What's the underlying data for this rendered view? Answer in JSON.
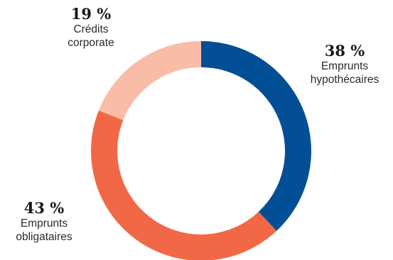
{
  "chart_data": {
    "type": "pie",
    "donut": true,
    "title": "",
    "slices": [
      {
        "label": "Emprunts hypothécaires",
        "label_lines": [
          "Emprunts",
          "hypothécaires"
        ],
        "value": 38,
        "value_label": "38 %",
        "color": "#034f95"
      },
      {
        "label": "Emprunts obligataires",
        "label_lines": [
          "Emprunts",
          "obligataires"
        ],
        "value": 43,
        "value_label": "43 %",
        "color": "#f26846"
      },
      {
        "label": "Crédits corporate",
        "label_lines": [
          "Crédits",
          "corporate"
        ],
        "value": 19,
        "value_label": "19 %",
        "color": "#f9bca7"
      }
    ]
  }
}
